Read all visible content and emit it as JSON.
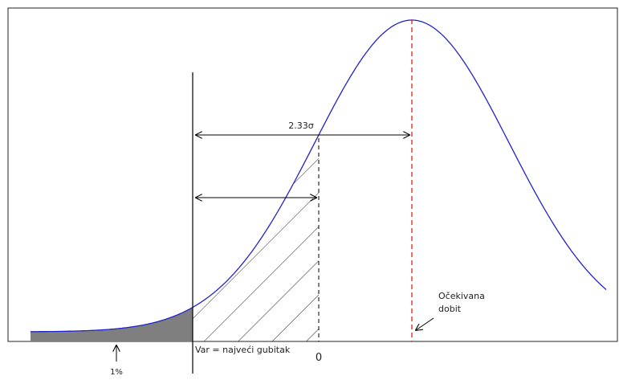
{
  "labels": {
    "sigma": "2.33σ",
    "expected_line1": "Očekivana",
    "expected_line2": "dobit",
    "var": "Var = najveći gubitak",
    "zero": "0",
    "percent": "1%"
  }
}
